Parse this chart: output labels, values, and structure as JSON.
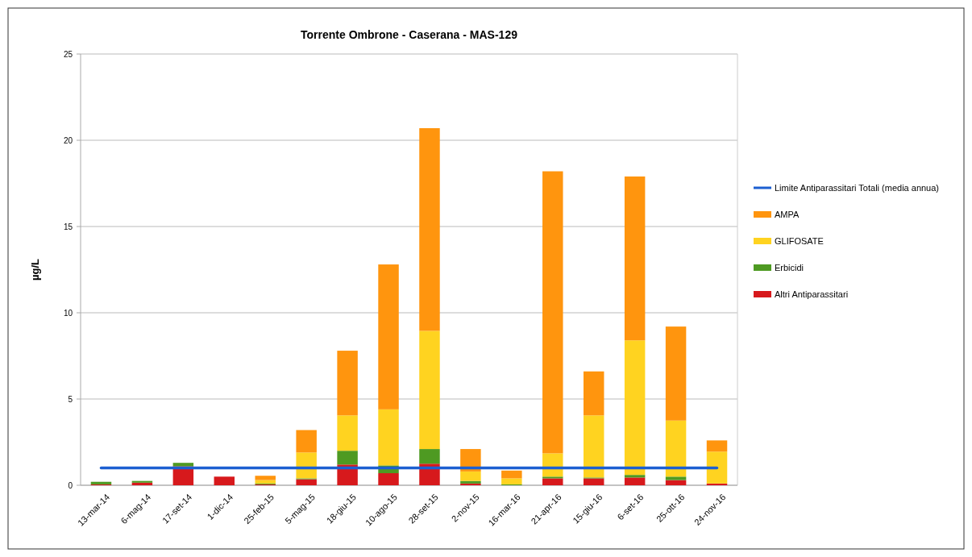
{
  "chart_data": {
    "type": "bar",
    "title": "Torrente Ombrone - Caserana - MAS-129",
    "ylabel": "µg/L",
    "categories": [
      "13-mar-14",
      "6-mag-14",
      "17-set-14",
      "1-dic-14",
      "25-feb-15",
      "5-mag-15",
      "18-giu-15",
      "10-ago-15",
      "28-set-15",
      "2-nov-15",
      "16-mar-16",
      "21-apr-16",
      "15-giu-16",
      "6-set-16",
      "25-ott-16",
      "24-nov-16"
    ],
    "stacked": true,
    "ylim": [
      0,
      25
    ],
    "yticks": [
      0,
      5,
      10,
      15,
      20,
      25
    ],
    "grid": "y",
    "legend": "right",
    "series": [
      {
        "name": "Altri Antiparassitari",
        "color": "#d7191c",
        "values": [
          0.05,
          0.15,
          1.1,
          0.5,
          0.05,
          0.35,
          1.2,
          0.7,
          1.25,
          0.1,
          0,
          0.4,
          0.4,
          0.45,
          0.3,
          0.1
        ]
      },
      {
        "name": "Erbicidi",
        "color": "#4e9a22",
        "values": [
          0.15,
          0.1,
          0.2,
          0,
          0.05,
          0.05,
          0.8,
          0.45,
          0.85,
          0.15,
          0.05,
          0.1,
          0.05,
          0.15,
          0.2,
          0
        ]
      },
      {
        "name": "GLIFOSATE",
        "color": "#ffd320",
        "values": [
          0,
          0,
          0,
          0,
          0.2,
          1.5,
          2.05,
          3.25,
          6.85,
          0.55,
          0.35,
          1.35,
          3.6,
          7.8,
          3.25,
          1.85
        ]
      },
      {
        "name": "AMPA",
        "color": "#ff950e",
        "values": [
          0,
          0,
          0,
          0,
          0.25,
          1.3,
          3.75,
          8.4,
          11.75,
          1.3,
          0.45,
          16.35,
          2.55,
          9.5,
          5.45,
          0.65
        ]
      },
      {
        "name": "Limite Antiparassitari Totali (media annua)",
        "type": "line",
        "color": "#1c5fd1",
        "values": [
          1,
          1,
          1,
          1,
          1,
          1,
          1,
          1,
          1,
          1,
          1,
          1,
          1,
          1,
          1,
          1
        ]
      }
    ]
  }
}
